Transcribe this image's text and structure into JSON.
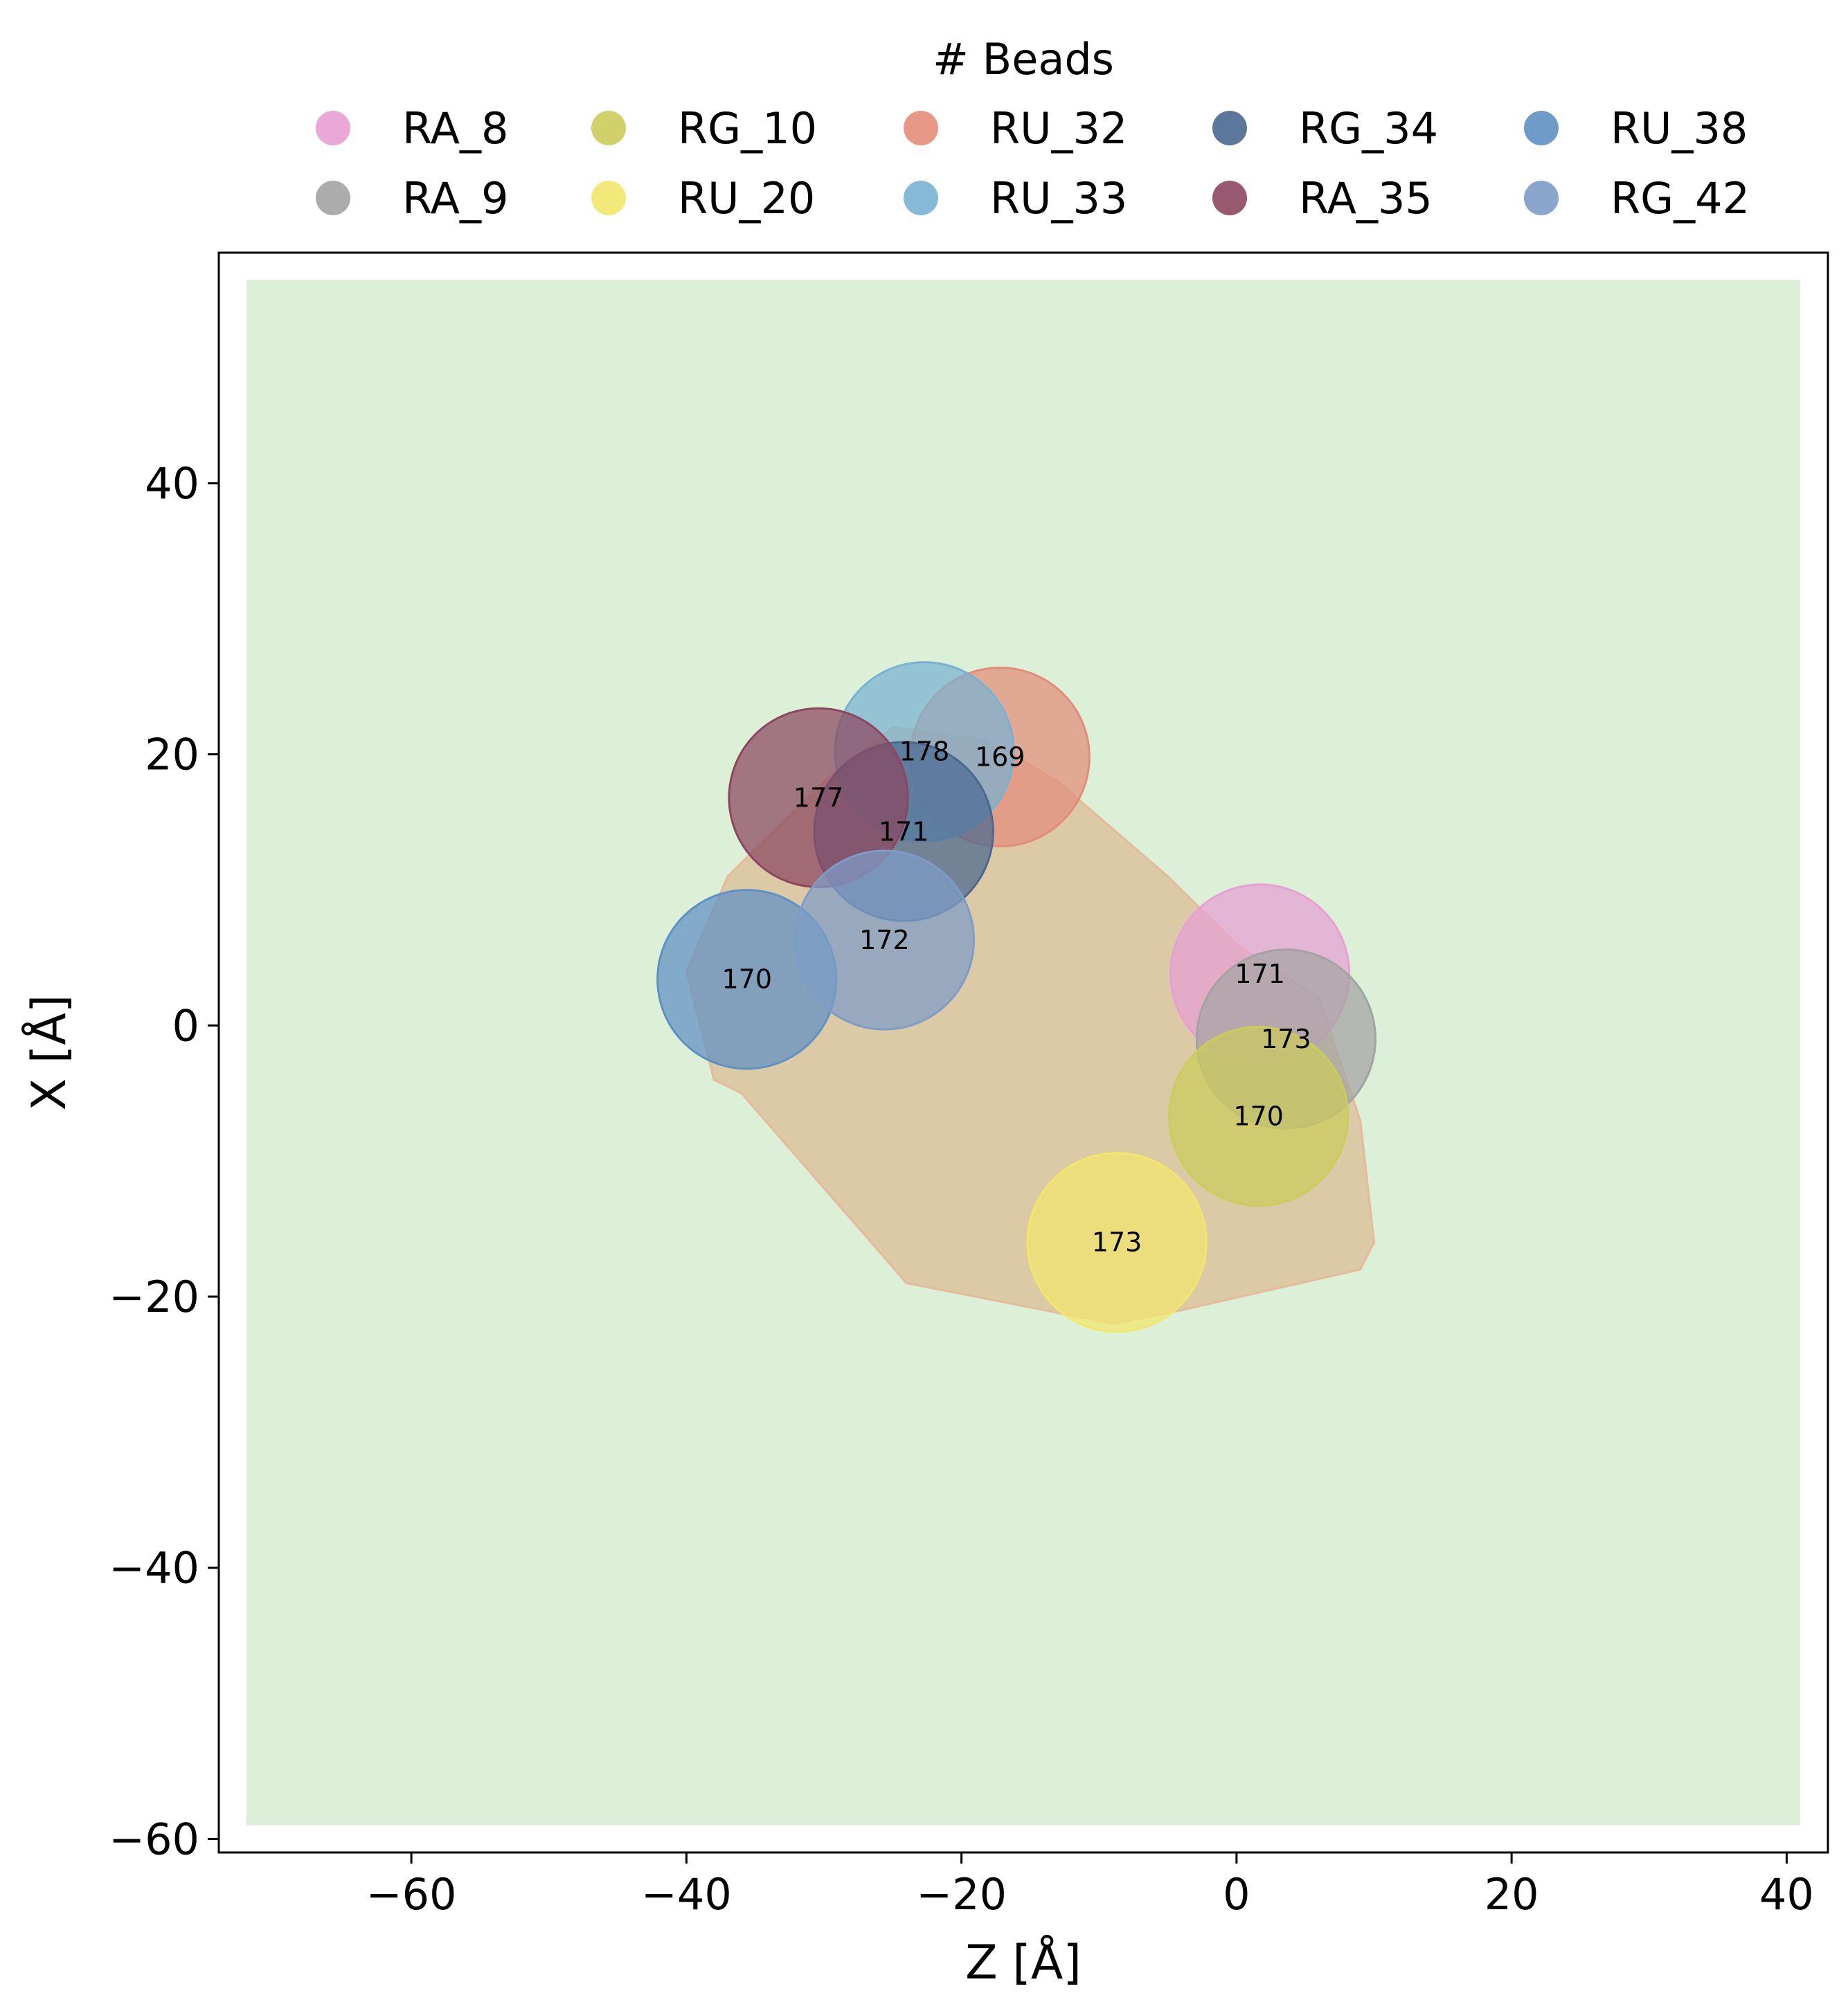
{
  "chart_data": {
    "type": "scatter",
    "xlabel": "Z [Å]",
    "ylabel": "X [Å]",
    "xlim": [
      -74,
      43
    ],
    "ylim": [
      -61,
      57
    ],
    "xticks": [
      -60,
      -40,
      -20,
      0,
      20,
      40
    ],
    "yticks": [
      -60,
      -40,
      -20,
      0,
      20,
      40
    ],
    "xtick_labels": [
      "−60",
      "−40",
      "−20",
      "0",
      "20",
      "40"
    ],
    "ytick_labels": [
      "−60",
      "−40",
      "−20",
      "0",
      "20",
      "40"
    ],
    "legend": {
      "title": "# Beads",
      "placement": "top-center",
      "columns": 6
    },
    "background_region": {
      "color": "#dcf0d8",
      "x": [
        -72,
        41
      ],
      "y": [
        -59,
        55
      ]
    },
    "density_hull": {
      "color": "#dcc7a3",
      "points": [
        [
          -37,
          11
        ],
        [
          -30,
          18
        ],
        [
          -25,
          22
        ],
        [
          -18,
          21
        ],
        [
          -13,
          18
        ],
        [
          -5,
          11
        ],
        [
          0,
          6
        ],
        [
          6,
          2
        ],
        [
          9,
          -7
        ],
        [
          10,
          -16
        ],
        [
          9,
          -18
        ],
        [
          -4,
          -21
        ],
        [
          -9,
          -22
        ],
        [
          -24,
          -19
        ],
        [
          -36,
          -5
        ],
        [
          -38,
          -4
        ],
        [
          -40,
          4
        ]
      ]
    },
    "series": [
      {
        "name": "RA_8",
        "color": "#e89fd4",
        "x": 1.7,
        "y": 3.8,
        "radius": 6.5,
        "label": "171"
      },
      {
        "name": "RA_9",
        "color": "#a3a3a3",
        "x": 3.6,
        "y": -1,
        "radius": 6.5,
        "label": "173"
      },
      {
        "name": "RG_10",
        "color": "#cccc5c",
        "x": 1.6,
        "y": -6.7,
        "radius": 6.5,
        "label": "170"
      },
      {
        "name": "RU_20",
        "color": "#f2e66c",
        "x": -8.7,
        "y": -16,
        "radius": 6.5,
        "label": "173"
      },
      {
        "name": "RU_32",
        "color": "#e38c79",
        "x": -17.2,
        "y": 19.8,
        "radius": 6.5,
        "label": "169"
      },
      {
        "name": "RU_33",
        "color": "#78b2d3",
        "x": -22.7,
        "y": 20.2,
        "radius": 6.5,
        "label": "178"
      },
      {
        "name": "RG_34",
        "color": "#4a6890",
        "x": -24.2,
        "y": 14.3,
        "radius": 6.5,
        "label": "171"
      },
      {
        "name": "RA_35",
        "color": "#8c4660",
        "x": -30.4,
        "y": 16.8,
        "radius": 6.5,
        "label": "177"
      },
      {
        "name": "RU_38",
        "color": "#5f90c3",
        "x": -35.6,
        "y": 3.4,
        "radius": 6.5,
        "label": "170"
      },
      {
        "name": "RG_42",
        "color": "#7e9cc7",
        "x": -25.6,
        "y": 6.3,
        "radius": 6.5,
        "label": "172"
      }
    ]
  }
}
